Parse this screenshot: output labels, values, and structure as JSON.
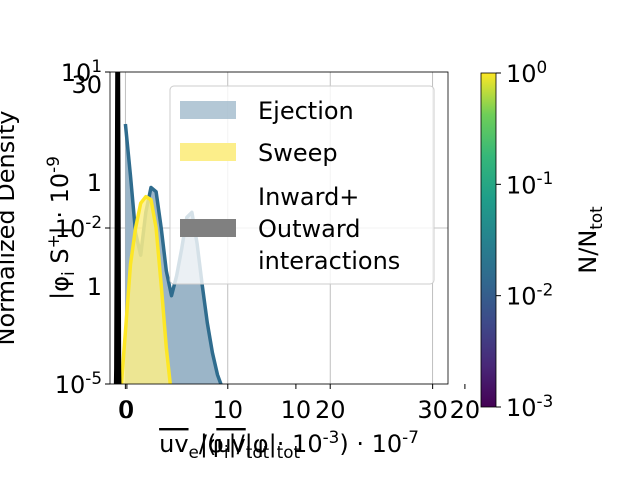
{
  "chart_data": {
    "type": "area",
    "title": "",
    "yscale": "log",
    "colormap": "viridis",
    "grid": true,
    "legend_position": "upper right",
    "overlapping_text": {
      "xlabel_a": "$\\overline{uv}_e/(\\overline{uv}_{\\mathrm{tot}} \\cdot 10^{-3}) \\cdot 10^{-7}$",
      "xlabel_b": "$|\\phi_i|/|\\phi|_{\\mathrm{tot}}$",
      "ylabel_a": "Normalized Density",
      "ylabel_b": "$|\\phi_i S^+| \\cdot 10^{-9}$",
      "x_ticks_a": [
        "0",
        "10",
        "20",
        "30"
      ],
      "x_ticks_b": [
        "0",
        "10",
        "20"
      ],
      "y_ticks_a": [
        "$10^{1}$",
        "$10^{-2}$",
        "$10^{-5}$"
      ],
      "y_ticks_b": [
        "30",
        "1",
        "1"
      ]
    },
    "x_axis_a": {
      "lim": [
        -1.5,
        31.5
      ]
    },
    "x_axis_b": {
      "lim": [
        -1,
        19
      ]
    },
    "y_axis_a": {
      "lim": [
        1e-05,
        10
      ]
    },
    "legend": [
      "Ejection",
      "Sweep",
      "Inward+\nOutward\ninteractions"
    ],
    "series": [
      {
        "name": "Ejection",
        "color": "#2f6c8e",
        "fill": "#9bb5c8",
        "x": [
          0,
          0.5,
          1,
          1.5,
          2,
          2.5,
          3,
          3.5,
          4,
          4.5,
          5,
          5.5,
          6,
          6.5,
          7,
          7.5,
          8,
          8.5,
          9,
          9.5,
          10
        ],
        "y": [
          1.0,
          0.1,
          0.008,
          0.003,
          0.02,
          0.06,
          0.05,
          0.01,
          0.0015,
          0.0005,
          0.0012,
          0.004,
          0.016,
          0.02,
          0.005,
          0.0008,
          0.00015,
          4e-05,
          1.5e-05,
          8e-06,
          5e-06
        ]
      },
      {
        "name": "Sweep",
        "color": "#fde725",
        "fill": "#fcee8a",
        "x": [
          -0.5,
          0,
          0.5,
          1,
          1.5,
          2,
          2.5,
          3,
          3.5,
          4,
          4.5,
          5,
          5.5,
          6
        ],
        "y": [
          5e-06,
          0.0001,
          0.002,
          0.01,
          0.03,
          0.04,
          0.035,
          0.01,
          0.0008,
          5e-05,
          6e-06,
          2e-06,
          1e-06,
          1e-06
        ]
      },
      {
        "name": "Inward+\nOutward\ninteractions",
        "color": "#000000",
        "fill": "#808080",
        "x": [
          -1,
          -0.9,
          -0.8,
          -0.7,
          -0.6,
          -0.5
        ],
        "y": [
          1e-06,
          2e-05,
          10,
          10,
          2e-05,
          1e-06
        ]
      }
    ],
    "colorbar": {
      "label": "$N/N_{tot}$",
      "scale": "log",
      "range": [
        0.001,
        1
      ],
      "ticks": [
        "$10^{0}$",
        "$10^{-1}$",
        "$10^{-2}$",
        "$10^{-3}$"
      ]
    }
  }
}
